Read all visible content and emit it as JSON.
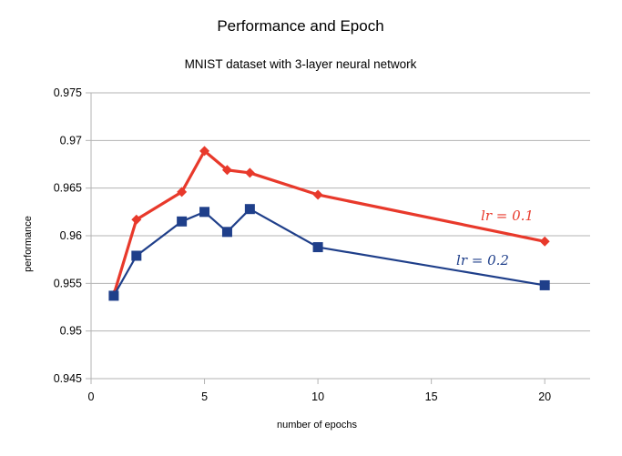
{
  "chart_data": {
    "type": "line",
    "title": "Performance and Epoch",
    "subtitle": "MNIST dataset with 3-layer neural network",
    "xlabel": "number of epochs",
    "ylabel": "performance",
    "xlim": [
      0,
      22
    ],
    "ylim": [
      0.945,
      0.975
    ],
    "x_ticks": [
      "0",
      "5",
      "10",
      "15",
      "20"
    ],
    "y_ticks": [
      "0.945",
      "0.95",
      "0.955",
      "0.96",
      "0.965",
      "0.97",
      "0.975"
    ],
    "grid": "horizontal",
    "legend": "none",
    "series": [
      {
        "name": "lr = 0.1",
        "color": "#e8392b",
        "marker": "diamond",
        "x": [
          1,
          2,
          4,
          5,
          6,
          7,
          10,
          20
        ],
        "y": [
          0.9538,
          0.9617,
          0.9646,
          0.9689,
          0.9669,
          0.9666,
          0.9643,
          0.9594
        ]
      },
      {
        "name": "lr = 0.2",
        "color": "#1f3f8a",
        "marker": "square",
        "x": [
          1,
          2,
          4,
          5,
          6,
          7,
          10,
          20
        ],
        "y": [
          0.9537,
          0.9579,
          0.9615,
          0.9625,
          0.9604,
          0.9628,
          0.9588,
          0.9548
        ]
      }
    ]
  }
}
